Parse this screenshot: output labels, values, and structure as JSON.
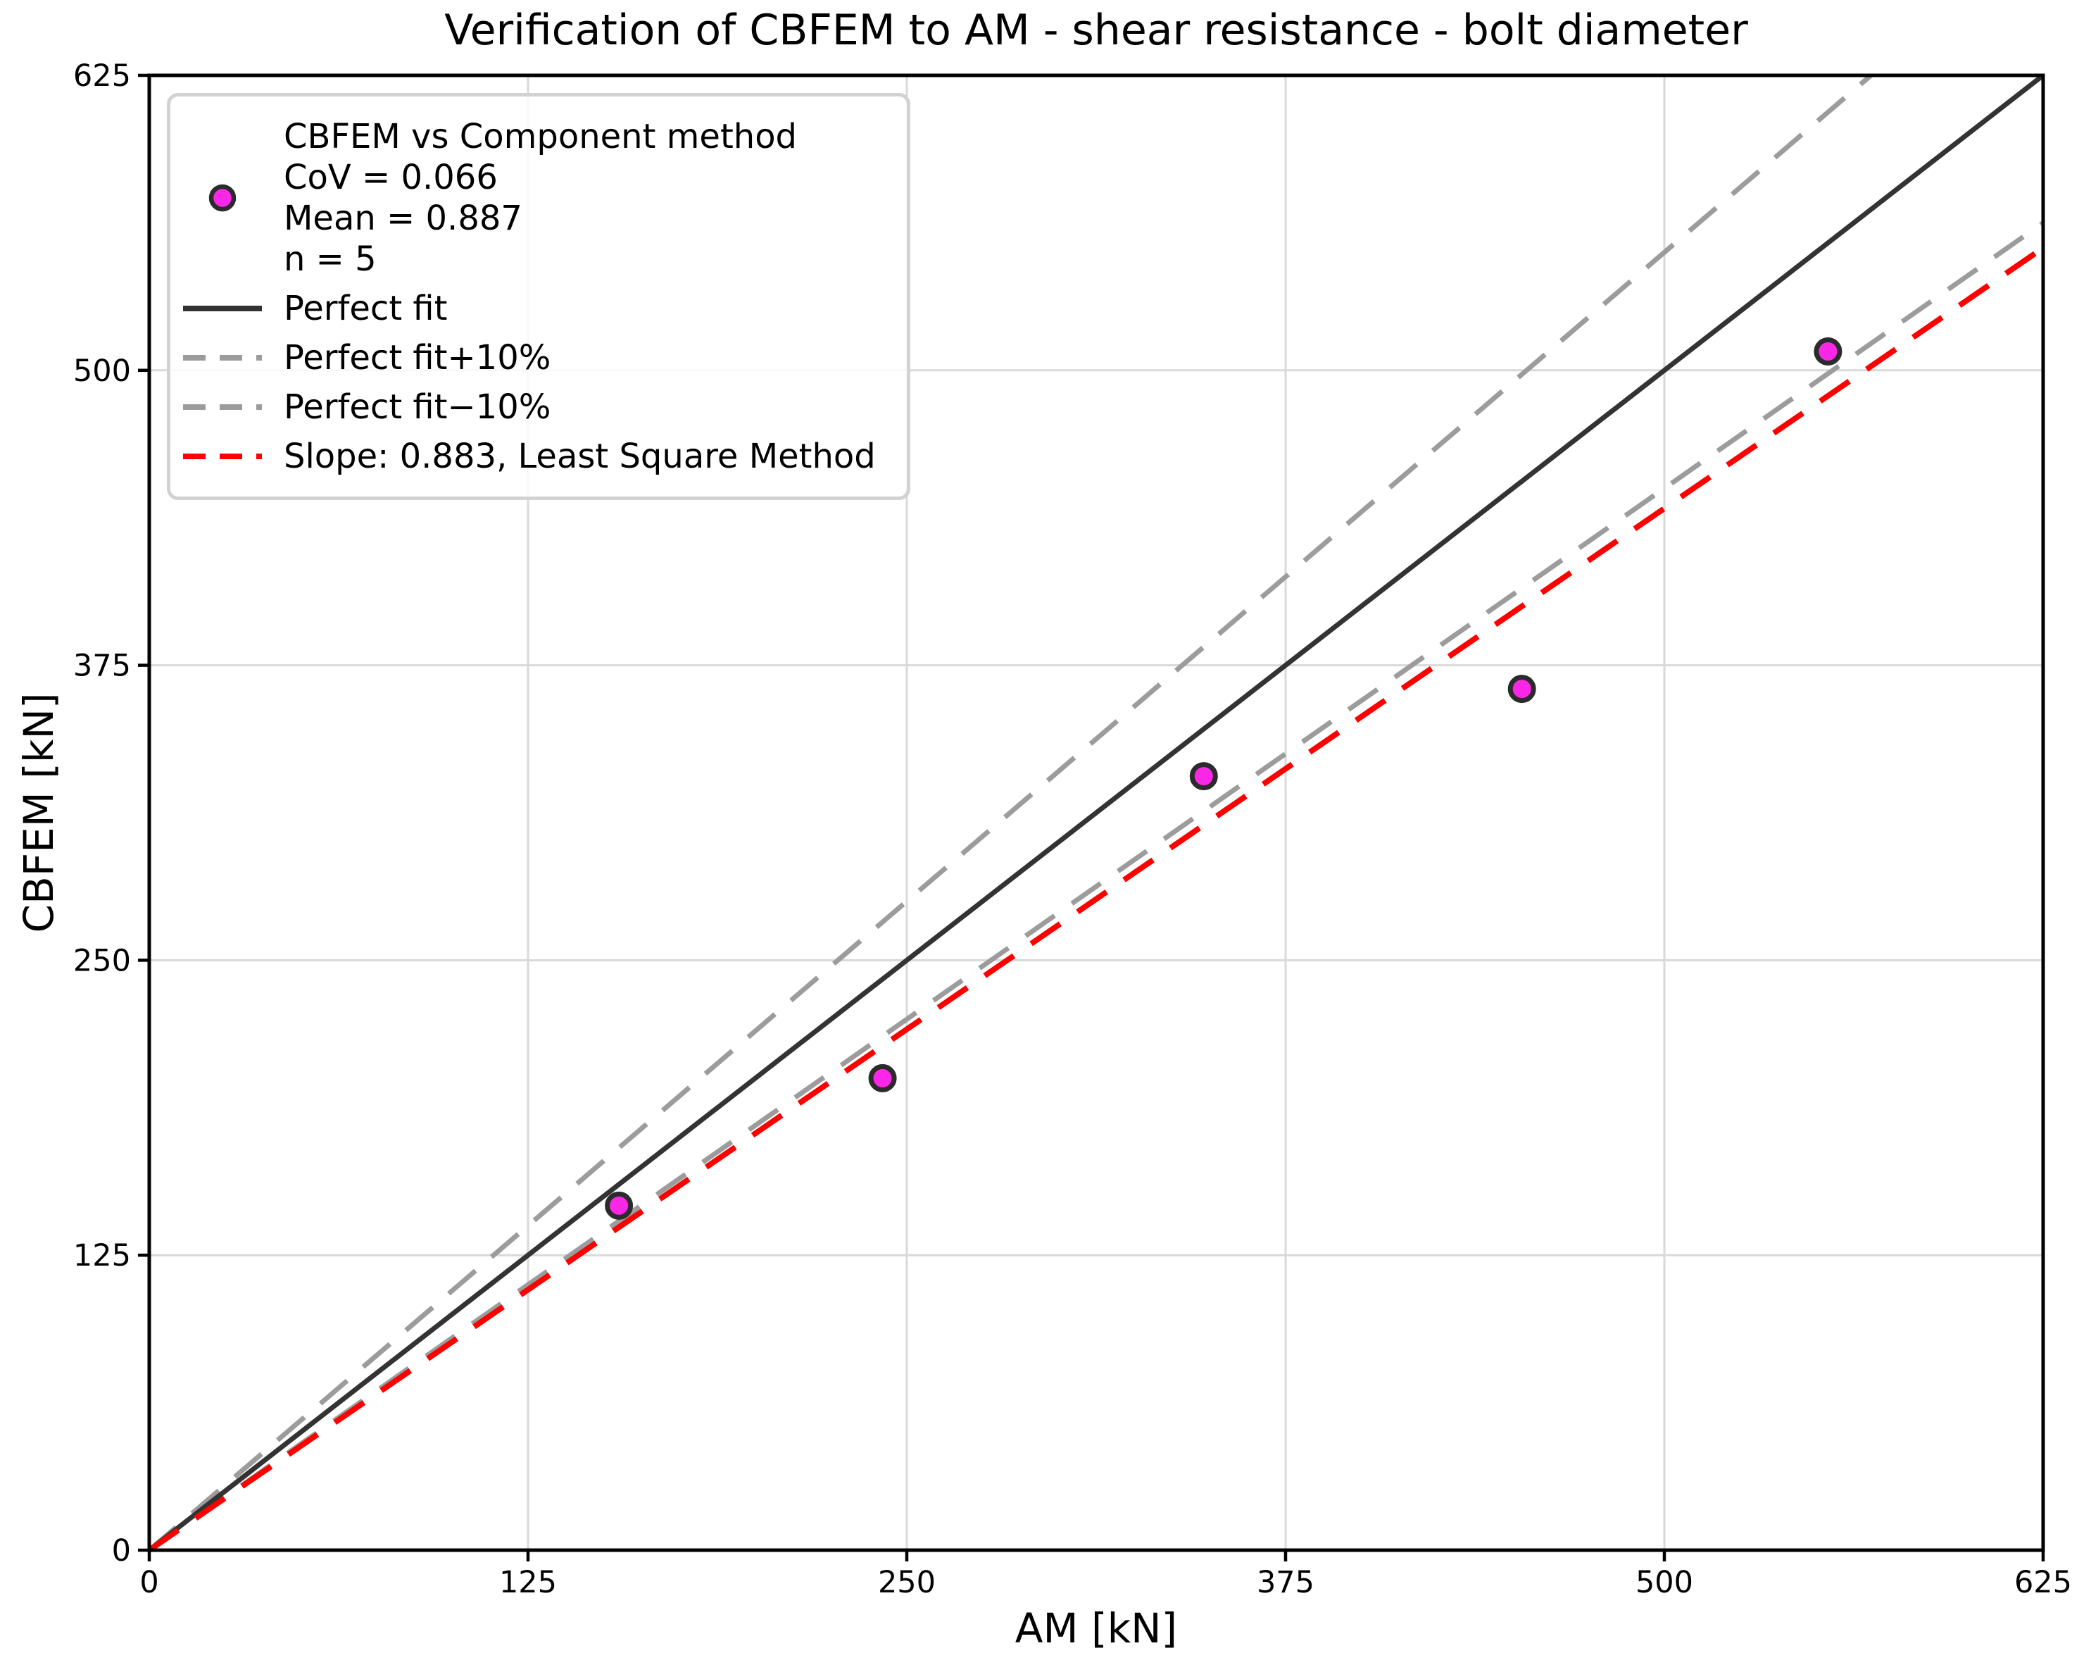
{
  "chart_data": {
    "type": "scatter",
    "title": "Verification of CBFEM to AM - shear resistance - bolt diameter",
    "xlabel": "AM [kN]",
    "ylabel": "CBFEM [kN]",
    "xlim": [
      0,
      625
    ],
    "ylim": [
      0,
      625
    ],
    "xticks": [
      0,
      125,
      250,
      375,
      500,
      625
    ],
    "yticks": [
      0,
      125,
      250,
      375,
      500,
      625
    ],
    "grid": true,
    "grid_color": "#d9d9d9",
    "spine_color": "#000000",
    "point_color": "#fa28e6",
    "point_edge_color": "#2b2b2b",
    "points": [
      {
        "x": 155,
        "y": 146
      },
      {
        "x": 242,
        "y": 200
      },
      {
        "x": 348,
        "y": 328
      },
      {
        "x": 453,
        "y": 365
      },
      {
        "x": 554,
        "y": 508
      }
    ],
    "lines": [
      {
        "name": "perfect-fit-line",
        "label": "Perfect fit",
        "slope": 1.0,
        "style": "solid",
        "color": "#333333"
      },
      {
        "name": "perfect-fit-plus10-line",
        "label": "Perfect fit+10%",
        "slope": 1.1,
        "style": "dashed",
        "color": "#9c9c9c"
      },
      {
        "name": "perfect-fit-minus10-line",
        "label": "Perfect fit−10%",
        "slope": 0.9,
        "style": "dashed",
        "color": "#9c9c9c"
      },
      {
        "name": "least-square-line",
        "label": "Slope: 0.883, Least Square Method",
        "slope": 0.883,
        "style": "dashed",
        "color": "#ff0000"
      }
    ],
    "legend": {
      "scatter_label_lines": [
        "CBFEM vs Component method",
        "CoV = 0.066",
        "Mean = 0.887",
        "n = 5"
      ],
      "stats": {
        "cov": "0.066",
        "mean": "0.887",
        "n": "5"
      }
    }
  }
}
